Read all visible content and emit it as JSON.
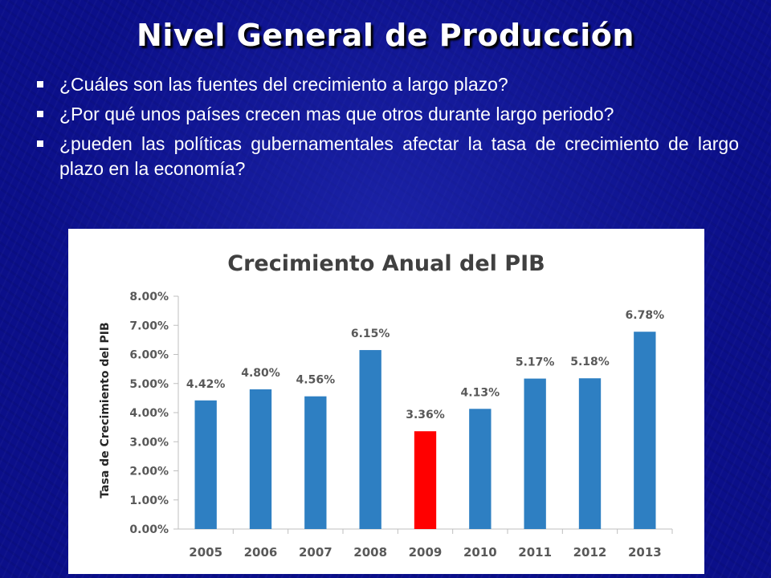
{
  "slide": {
    "title": "Nivel General de Producción",
    "bullets": [
      "¿Cuáles son las fuentes del crecimiento a largo plazo?",
      "¿Por qué unos países crecen mas que otros durante largo periodo?",
      "¿pueden las políticas gubernamentales afectar la tasa de crecimiento de largo plazo en la economía?"
    ]
  },
  "chart_data": {
    "type": "bar",
    "title": "Crecimiento Anual del PIB",
    "xlabel": "",
    "ylabel": "Tasa de Crecimiento del PIB",
    "categories": [
      "2005",
      "2006",
      "2007",
      "2008",
      "2009",
      "2010",
      "2011",
      "2012",
      "2013"
    ],
    "values": [
      4.42,
      4.8,
      4.56,
      6.15,
      3.36,
      4.13,
      5.17,
      5.18,
      6.78
    ],
    "data_labels": [
      "4.42%",
      "4.80%",
      "4.56%",
      "6.15%",
      "3.36%",
      "4.13%",
      "5.17%",
      "5.18%",
      "6.78%"
    ],
    "ylim": [
      0,
      8
    ],
    "yticks": [
      0,
      1,
      2,
      3,
      4,
      5,
      6,
      7,
      8
    ],
    "ytick_labels": [
      "0.00%",
      "1.00%",
      "2.00%",
      "3.00%",
      "4.00%",
      "5.00%",
      "6.00%",
      "7.00%",
      "8.00%"
    ],
    "grid": false,
    "legend": "none",
    "colors": {
      "default_bar": "#2e7fc2",
      "highlight_bar": "#ff0000",
      "highlight_category": "2009",
      "axis": "#bfbfbf"
    }
  }
}
